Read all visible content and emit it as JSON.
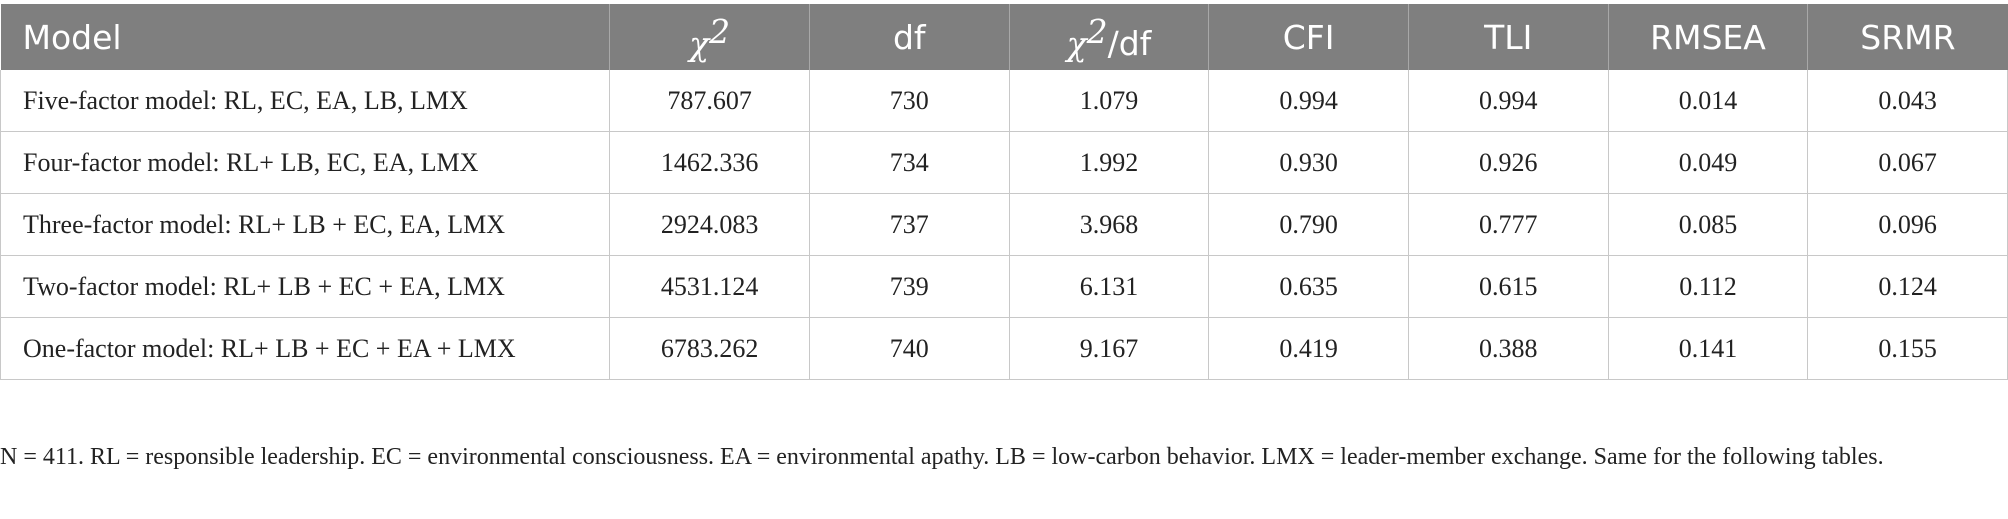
{
  "table": {
    "headers": {
      "model": "Model",
      "chi2_symbol": "χ",
      "chi2_sup": "2",
      "df": "df",
      "chi2df_symbol": "χ",
      "chi2df_sup": "2",
      "chi2df_suffix": "/df",
      "cfi": "CFI",
      "tli": "TLI",
      "rmsea": "RMSEA",
      "srmr": "SRMR"
    },
    "rows": [
      {
        "model": "Five-factor model: RL, EC, EA, LB, LMX",
        "chi2": "787.607",
        "df": "730",
        "chi2df": "1.079",
        "cfi": "0.994",
        "tli": "0.994",
        "rmsea": "0.014",
        "srmr": "0.043"
      },
      {
        "model": "Four-factor model: RL+ LB, EC, EA, LMX",
        "chi2": "1462.336",
        "df": "734",
        "chi2df": "1.992",
        "cfi": "0.930",
        "tli": "0.926",
        "rmsea": "0.049",
        "srmr": "0.067"
      },
      {
        "model": "Three-factor model: RL+ LB + EC, EA, LMX",
        "chi2": "2924.083",
        "df": "737",
        "chi2df": "3.968",
        "cfi": "0.790",
        "tli": "0.777",
        "rmsea": "0.085",
        "srmr": "0.096"
      },
      {
        "model": "Two-factor model: RL+ LB + EC + EA, LMX",
        "chi2": "4531.124",
        "df": "739",
        "chi2df": "6.131",
        "cfi": "0.635",
        "tli": "0.615",
        "rmsea": "0.112",
        "srmr": "0.124"
      },
      {
        "model": "One-factor model: RL+ LB + EC + EA + LMX",
        "chi2": "6783.262",
        "df": "740",
        "chi2df": "9.167",
        "cfi": "0.419",
        "tli": "0.388",
        "rmsea": "0.141",
        "srmr": "0.155"
      }
    ]
  },
  "note": "N = 411. RL = responsible leadership. EC = environmental consciousness. EA = environmental apathy. LB = low-carbon behavior. LMX = leader-member exchange. Same for the following tables.",
  "colors": {
    "header_bg": "#7f7f7f",
    "header_text": "#ffffff",
    "grid": "#c8c8c8"
  }
}
